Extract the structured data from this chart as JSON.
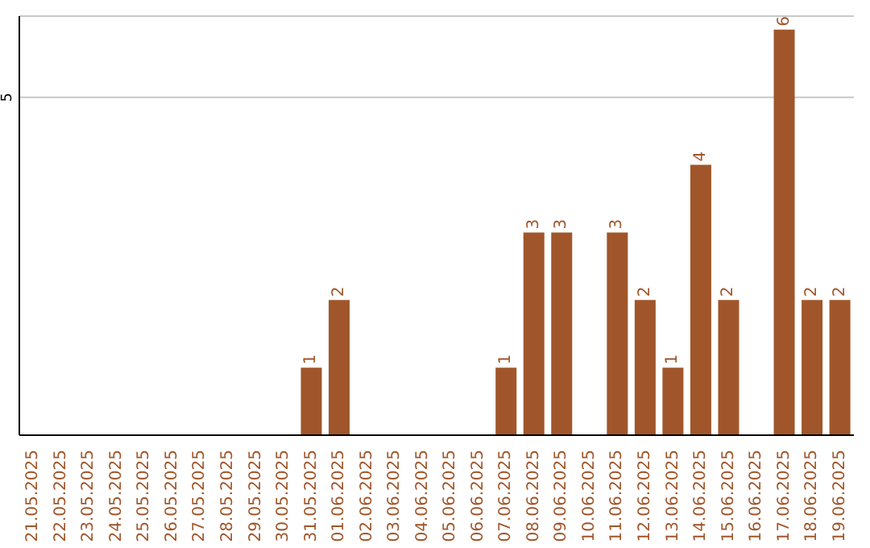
{
  "chart_data": {
    "type": "bar",
    "categories": [
      "21.05.2025",
      "22.05.2025",
      "23.05.2025",
      "24.05.2025",
      "25.05.2025",
      "26.05.2025",
      "27.05.2025",
      "28.05.2025",
      "29.05.2025",
      "30.05.2025",
      "31.05.2025",
      "01.06.2025",
      "02.06.2025",
      "03.06.2025",
      "04.06.2025",
      "05.06.2025",
      "06.06.2025",
      "07.06.2025",
      "08.06.2025",
      "09.06.2025",
      "10.06.2025",
      "11.06.2025",
      "12.06.2025",
      "13.06.2025",
      "14.06.2025",
      "15.06.2025",
      "16.06.2025",
      "17.06.2025",
      "18.06.2025",
      "19.06.2025"
    ],
    "values": [
      0,
      0,
      0,
      0,
      0,
      0,
      0,
      0,
      0,
      0,
      1,
      2,
      0,
      0,
      0,
      0,
      0,
      1,
      3,
      3,
      0,
      3,
      2,
      1,
      4,
      2,
      0,
      6,
      2,
      2
    ],
    "value_labels": [
      null,
      null,
      null,
      null,
      null,
      null,
      null,
      null,
      null,
      null,
      "1",
      "2",
      null,
      null,
      null,
      null,
      null,
      "1",
      "3",
      "3",
      null,
      "3",
      "2",
      "1",
      "4",
      "2",
      null,
      "6",
      "2",
      "2"
    ],
    "color": "#a0562a",
    "ylim": [
      0,
      6.2
    ],
    "yticks": [
      5
    ],
    "grid": "y"
  }
}
